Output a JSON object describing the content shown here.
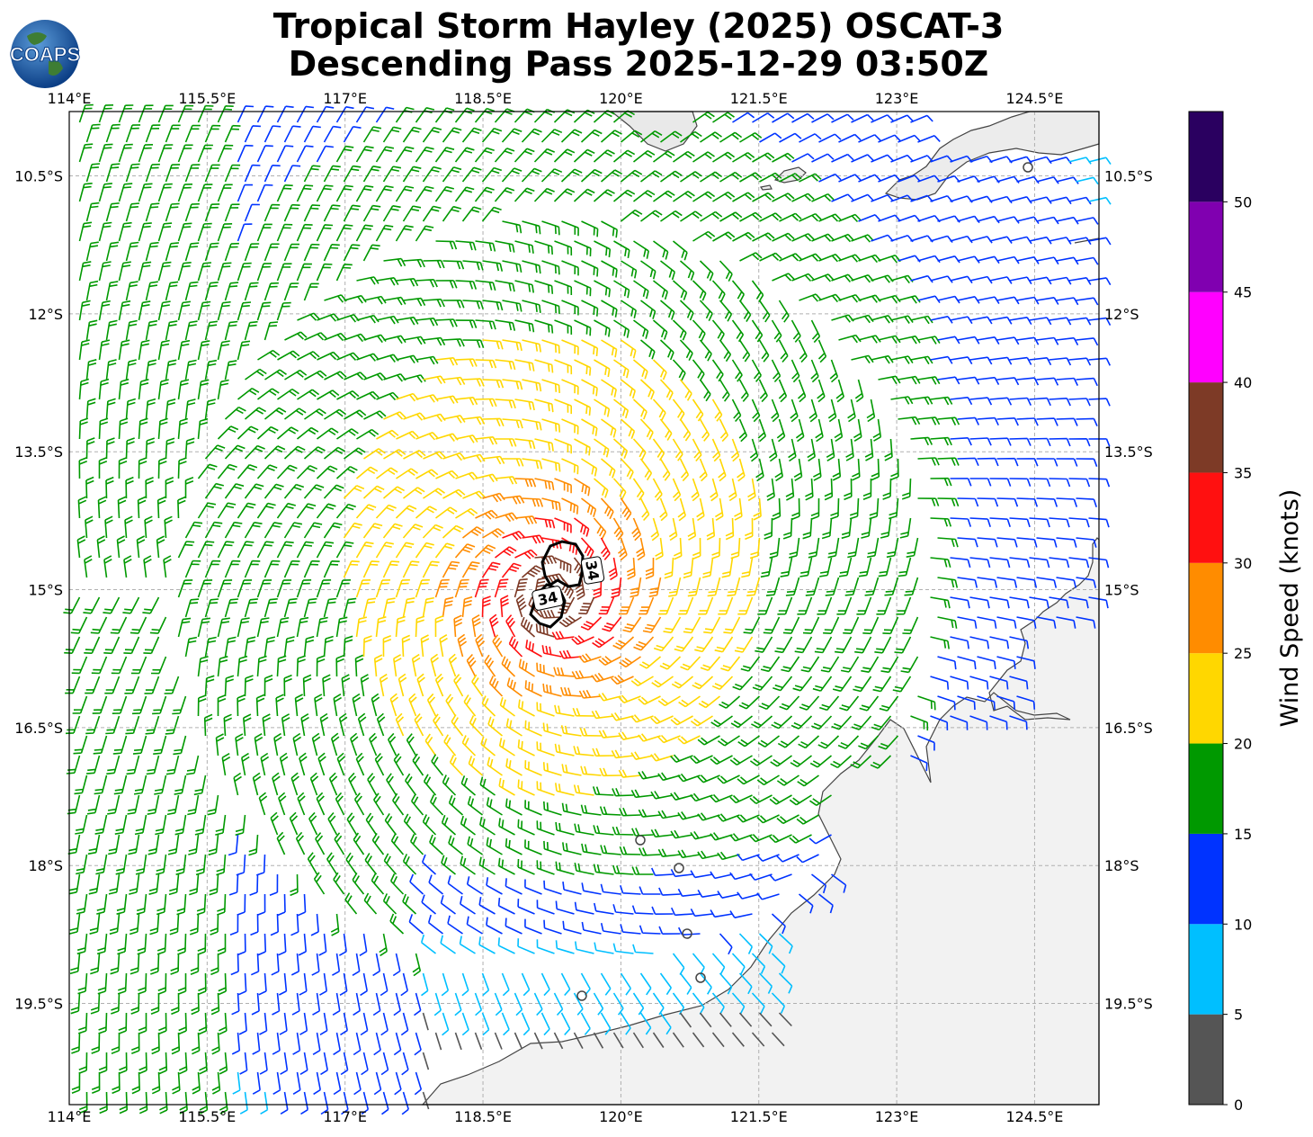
{
  "title_line1": "Tropical Storm Hayley (2025) OSCAT-3",
  "title_line2": "Descending Pass 2025-12-29 03:50Z",
  "logo_text": "COAPS",
  "map": {
    "lon_ticks": [
      "114°E",
      "115.5°E",
      "117°E",
      "118.5°E",
      "120°E",
      "121.5°E",
      "123°E",
      "124.5°E"
    ],
    "lat_ticks": [
      "10.5°S",
      "12°S",
      "13.5°S",
      "15°S",
      "16.5°S",
      "18°S",
      "19.5°S"
    ],
    "lon_range": [
      114,
      125.2
    ],
    "lat_range": [
      -9.8,
      -20.6
    ],
    "storm_center": {
      "lon": 119.25,
      "lat": -15.05
    },
    "wind_radius_labels": [
      "34",
      "34"
    ]
  },
  "colorbar": {
    "label": "Wind Speed (knots)",
    "ticks": [
      "0",
      "5",
      "10",
      "15",
      "20",
      "25",
      "30",
      "35",
      "40",
      "45",
      "50"
    ],
    "bins": [
      {
        "from": 0,
        "to": 5,
        "color": "#555555"
      },
      {
        "from": 5,
        "to": 10,
        "color": "#00bfff"
      },
      {
        "from": 10,
        "to": 15,
        "color": "#0033ff"
      },
      {
        "from": 15,
        "to": 20,
        "color": "#009900"
      },
      {
        "from": 20,
        "to": 25,
        "color": "#ffd700"
      },
      {
        "from": 25,
        "to": 30,
        "color": "#ff8c00"
      },
      {
        "from": 30,
        "to": 35,
        "color": "#ff1010"
      },
      {
        "from": 35,
        "to": 40,
        "color": "#7d3a26"
      },
      {
        "from": 40,
        "to": 45,
        "color": "#ff00ff"
      },
      {
        "from": 45,
        "to": 50,
        "color": "#8000b0"
      },
      {
        "from": 50,
        "to": 55,
        "color": "#2a0060"
      }
    ]
  }
}
